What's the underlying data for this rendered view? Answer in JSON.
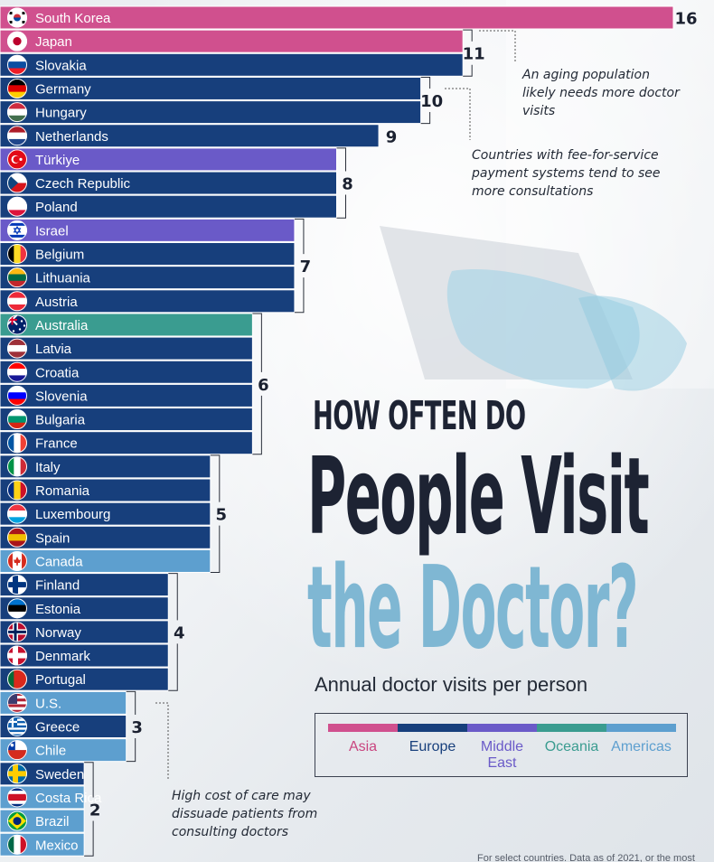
{
  "title_line1": "HOW OFTEN DO",
  "title_line2": "People Visit",
  "title_line3": "the Doctor?",
  "subtitle": "Annual doctor visits per person",
  "footnote": "For select countries. Data as of 2021, or the most",
  "colors": {
    "Asia": "#d0508e",
    "Europe": "#173f7c",
    "Middle East": "#6a5ac8",
    "Oceania": "#3a9c90",
    "Americas": "#5d9fcf"
  },
  "legend": [
    {
      "region": "Asia",
      "label": "Asia",
      "text_color": "#c9457f"
    },
    {
      "region": "Europe",
      "label": "Europe",
      "text_color": "#173f7c"
    },
    {
      "region": "Middle East",
      "label": "Middle East",
      "text_color": "#6a5ac8"
    },
    {
      "region": "Oceania",
      "label": "Oceania",
      "text_color": "#3a9c90"
    },
    {
      "region": "Americas",
      "label": "Americas",
      "text_color": "#5d9fcf"
    }
  ],
  "annotations": [
    {
      "text": "An aging population likely needs more doctor visits"
    },
    {
      "text": "Countries with fee-for-service payment systems tend to see more consultations"
    },
    {
      "text": "High cost of care may dissuade patients from consulting doctors"
    }
  ],
  "chart_data": {
    "type": "bar",
    "orientation": "horizontal",
    "title": "HOW OFTEN DO People Visit the Doctor?",
    "subtitle": "Annual doctor visits per person",
    "xlim": [
      0,
      16
    ],
    "grid": false,
    "legend_position": "bottom-right",
    "categories": [
      "South Korea",
      "Japan",
      "Slovakia",
      "Germany",
      "Hungary",
      "Netherlands",
      "Türkiye",
      "Czech Republic",
      "Poland",
      "Israel",
      "Belgium",
      "Lithuania",
      "Austria",
      "Australia",
      "Latvia",
      "Croatia",
      "Slovenia",
      "Bulgaria",
      "France",
      "Italy",
      "Romania",
      "Luxembourg",
      "Spain",
      "Canada",
      "Finland",
      "Estonia",
      "Norway",
      "Denmark",
      "Portugal",
      "U.S.",
      "Greece",
      "Chile",
      "Sweden",
      "Costa Rica",
      "Brazil",
      "Mexico"
    ],
    "values": [
      16,
      11,
      11,
      10,
      10,
      9,
      8,
      8,
      8,
      7,
      7,
      7,
      7,
      6,
      6,
      6,
      6,
      6,
      6,
      5,
      5,
      5,
      5,
      5,
      4,
      4,
      4,
      4,
      4,
      3,
      3,
      3,
      2,
      2,
      2,
      2
    ],
    "regions": [
      "Asia",
      "Asia",
      "Europe",
      "Europe",
      "Europe",
      "Europe",
      "Middle East",
      "Europe",
      "Europe",
      "Middle East",
      "Europe",
      "Europe",
      "Europe",
      "Oceania",
      "Europe",
      "Europe",
      "Europe",
      "Europe",
      "Europe",
      "Europe",
      "Europe",
      "Europe",
      "Europe",
      "Americas",
      "Europe",
      "Europe",
      "Europe",
      "Europe",
      "Europe",
      "Americas",
      "Europe",
      "Americas",
      "Europe",
      "Americas",
      "Americas",
      "Americas"
    ],
    "group_labels": [
      {
        "value": "16",
        "first": 0,
        "last": 0
      },
      {
        "value": "11",
        "first": 1,
        "last": 2
      },
      {
        "value": "10",
        "first": 3,
        "last": 4
      },
      {
        "value": "9",
        "first": 5,
        "last": 5
      },
      {
        "value": "8",
        "first": 6,
        "last": 8
      },
      {
        "value": "7",
        "first": 9,
        "last": 12
      },
      {
        "value": "6",
        "first": 13,
        "last": 18
      },
      {
        "value": "5",
        "first": 19,
        "last": 23
      },
      {
        "value": "4",
        "first": 24,
        "last": 28
      },
      {
        "value": "3",
        "first": 29,
        "last": 31
      },
      {
        "value": "2",
        "first": 32,
        "last": 35
      }
    ],
    "flags": [
      {
        "kind": "korea"
      },
      {
        "kind": "japan"
      },
      {
        "kind": "tri-h",
        "colors": [
          "#ffffff",
          "#0b4ea2",
          "#ee1c25"
        ]
      },
      {
        "kind": "tri-h",
        "colors": [
          "#000000",
          "#dd0000",
          "#ffce00"
        ]
      },
      {
        "kind": "tri-h",
        "colors": [
          "#cd2a3e",
          "#ffffff",
          "#436f4d"
        ]
      },
      {
        "kind": "tri-h",
        "colors": [
          "#ae1c28",
          "#ffffff",
          "#21468b"
        ]
      },
      {
        "kind": "turkey"
      },
      {
        "kind": "czech"
      },
      {
        "kind": "tri-h",
        "colors": [
          "#ffffff",
          "#ffffff",
          "#dc143c"
        ]
      },
      {
        "kind": "israel"
      },
      {
        "kind": "tri-v",
        "colors": [
          "#000000",
          "#fdda24",
          "#ef3340"
        ]
      },
      {
        "kind": "tri-h",
        "colors": [
          "#fdb913",
          "#006a44",
          "#c1272d"
        ]
      },
      {
        "kind": "tri-h",
        "colors": [
          "#ed2939",
          "#ffffff",
          "#ed2939"
        ]
      },
      {
        "kind": "australia"
      },
      {
        "kind": "tri-h",
        "colors": [
          "#9e3039",
          "#ffffff",
          "#9e3039"
        ]
      },
      {
        "kind": "tri-h",
        "colors": [
          "#ff0000",
          "#ffffff",
          "#171796"
        ]
      },
      {
        "kind": "tri-h",
        "colors": [
          "#ffffff",
          "#0000ff",
          "#ff0000"
        ]
      },
      {
        "kind": "tri-h",
        "colors": [
          "#ffffff",
          "#00966e",
          "#d62612"
        ]
      },
      {
        "kind": "tri-v",
        "colors": [
          "#0055a4",
          "#ffffff",
          "#ef4135"
        ]
      },
      {
        "kind": "tri-v",
        "colors": [
          "#009246",
          "#ffffff",
          "#ce2b37"
        ]
      },
      {
        "kind": "tri-v",
        "colors": [
          "#002b7f",
          "#fcd116",
          "#ce1126"
        ]
      },
      {
        "kind": "tri-h",
        "colors": [
          "#ef3340",
          "#ffffff",
          "#00a3e0"
        ]
      },
      {
        "kind": "tri-h",
        "colors": [
          "#aa151b",
          "#f1bf00",
          "#aa151b"
        ]
      },
      {
        "kind": "canada"
      },
      {
        "kind": "nordic",
        "colors": [
          "#ffffff",
          "#003580"
        ]
      },
      {
        "kind": "tri-h",
        "colors": [
          "#0072ce",
          "#000000",
          "#ffffff"
        ]
      },
      {
        "kind": "nordic",
        "colors": [
          "#ba0c2f",
          "#ffffff",
          "#00205b"
        ]
      },
      {
        "kind": "nordic",
        "colors": [
          "#c8102e",
          "#ffffff"
        ]
      },
      {
        "kind": "tri-v",
        "colors": [
          "#046a38",
          "#da291c",
          "#da291c"
        ]
      },
      {
        "kind": "usa"
      },
      {
        "kind": "greece"
      },
      {
        "kind": "chile"
      },
      {
        "kind": "nordic",
        "colors": [
          "#006aa7",
          "#fecc00"
        ]
      },
      {
        "kind": "costa"
      },
      {
        "kind": "brazil"
      },
      {
        "kind": "tri-v",
        "colors": [
          "#006847",
          "#ffffff",
          "#ce1126"
        ]
      }
    ]
  }
}
